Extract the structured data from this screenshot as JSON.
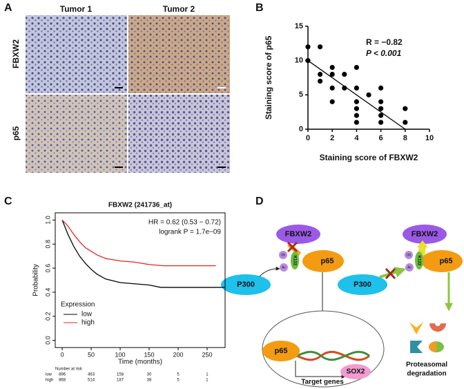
{
  "panel_a": {
    "label": "A",
    "columns": [
      "Tumor 1",
      "Tumor 2"
    ],
    "rows": [
      "FBXW2",
      "p65"
    ]
  },
  "chart_data": [
    {
      "type": "scatter",
      "label": "B",
      "xlabel": "Staining score of FBXW2",
      "ylabel": "Staining score of p65",
      "annotations": [
        "R = −0.82",
        "P < 0.001"
      ],
      "x": [
        0,
        0,
        1,
        1,
        1,
        2,
        2,
        2,
        2,
        3,
        3,
        4,
        4,
        4,
        4,
        4,
        4,
        5,
        6,
        6,
        6,
        6,
        6,
        8,
        8
      ],
      "values": [
        12,
        10,
        12,
        8,
        7,
        9,
        8,
        6,
        4,
        8,
        6,
        9,
        6,
        4,
        3,
        2,
        1,
        5,
        6,
        4,
        3,
        2,
        1,
        3,
        1
      ],
      "color": "#000000",
      "fit_line": {
        "x": [
          0,
          8
        ],
        "values": [
          10,
          0
        ]
      },
      "xlim": [
        0,
        10
      ],
      "ylim": [
        0,
        15
      ],
      "xticks": [
        0,
        2,
        4,
        6,
        8,
        10
      ],
      "yticks": [
        0,
        5,
        10,
        15
      ]
    },
    {
      "type": "line",
      "label": "C",
      "title": "FBXW2 (241736_at)",
      "xlabel": "Time (months)",
      "ylabel": "Probability",
      "annotations": [
        "HR = 0.62 (0.53 − 0.72)",
        "logrank P = 1.7e−09"
      ],
      "legend_title": "Expression",
      "series": [
        {
          "name": "low",
          "color": "#000000",
          "x": [
            0,
            10,
            20,
            30,
            40,
            50,
            60,
            75,
            100,
            125,
            150,
            170,
            200,
            250,
            280
          ],
          "values": [
            1.0,
            0.88,
            0.78,
            0.7,
            0.64,
            0.59,
            0.55,
            0.51,
            0.48,
            0.47,
            0.46,
            0.44,
            0.44,
            0.44,
            0.44
          ]
        },
        {
          "name": "high",
          "color": "#e8231e",
          "x": [
            0,
            10,
            20,
            30,
            40,
            50,
            60,
            75,
            100,
            125,
            150,
            175,
            200,
            265
          ],
          "values": [
            1.0,
            0.95,
            0.88,
            0.82,
            0.77,
            0.74,
            0.71,
            0.68,
            0.66,
            0.65,
            0.63,
            0.62,
            0.62,
            0.62
          ]
        }
      ],
      "xlim": [
        -12,
        281
      ],
      "ylim": [
        -0.06,
        1.06
      ],
      "xticks": [
        0,
        50,
        100,
        150,
        200,
        250
      ],
      "yticks": [
        {
          "value": 0,
          "label": "0.0"
        },
        {
          "value": 0.2,
          "label": "0.2"
        },
        {
          "value": 0.4,
          "label": "0.4"
        },
        {
          "value": 0.6,
          "label": "0.6"
        },
        {
          "value": 0.8,
          "label": "0.8"
        },
        {
          "value": 1,
          "label": "1.0"
        }
      ],
      "risk_table": {
        "title": "Number at risk",
        "rows": [
          {
            "name": "low",
            "counts": [
              896,
              463,
              158,
              30,
              5,
              1
            ]
          },
          {
            "name": "high",
            "counts": [
              868,
              514,
              187,
              38,
              5,
              1
            ]
          }
        ]
      }
    }
  ],
  "panel_d": {
    "label": "D",
    "fbxw2": "FBXW2",
    "p65": "p65",
    "p300": "P300",
    "k122": "K122",
    "ub": "Ub",
    "ac": "Ac",
    "sox2": "SOX2",
    "target": "Target genes",
    "degradation": [
      "Proteasomal",
      "degradation"
    ]
  }
}
